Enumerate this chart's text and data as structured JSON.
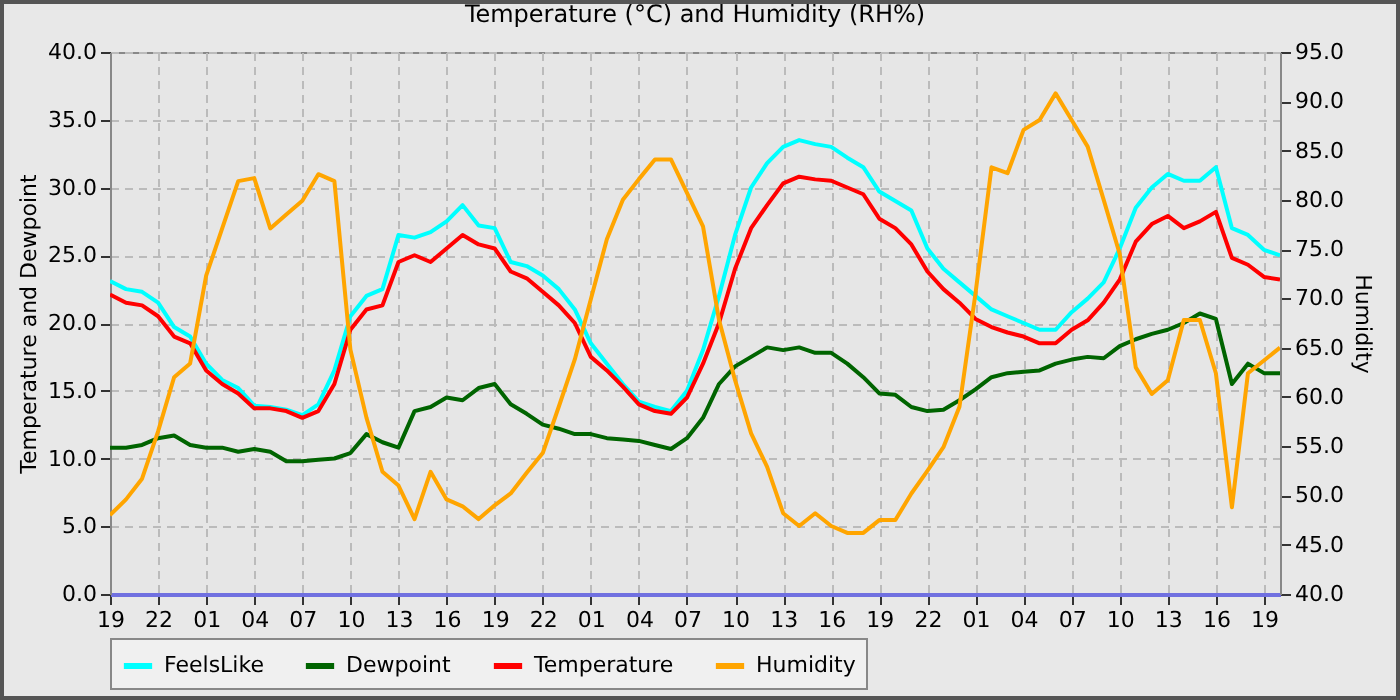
{
  "chart_data": {
    "type": "line",
    "title": "Temperature (°C) and Humidity (RH%)",
    "ylabel": "Temperature and Dewpoint",
    "y2label": "Humidity",
    "categories": [
      "19",
      null,
      null,
      "22",
      null,
      null,
      "01",
      null,
      null,
      "04",
      null,
      null,
      "07",
      null,
      null,
      "10",
      null,
      null,
      "13",
      null,
      null,
      "16",
      null,
      null,
      "19",
      null,
      null,
      "22",
      null,
      null,
      "01",
      null,
      null,
      "04",
      null,
      null,
      "07",
      null,
      null,
      "10",
      null,
      null,
      "13",
      null,
      null,
      "16",
      null,
      null,
      "19",
      null,
      null,
      "22",
      null,
      null,
      "01",
      null,
      null,
      "04",
      null,
      null,
      "07",
      null,
      null,
      "10",
      null,
      null,
      "13",
      null,
      null,
      "16",
      null,
      null,
      "19",
      null
    ],
    "ylim": [
      0,
      40
    ],
    "yticks": [
      {
        "value": 0,
        "label": "0.0"
      },
      {
        "value": 5,
        "label": "5.0"
      },
      {
        "value": 10,
        "label": "10.0"
      },
      {
        "value": 15,
        "label": "15.0"
      },
      {
        "value": 20,
        "label": "20.0"
      },
      {
        "value": 25,
        "label": "25.0"
      },
      {
        "value": 30,
        "label": "30.0"
      },
      {
        "value": 35,
        "label": "35.0"
      },
      {
        "value": 40,
        "label": "40.0"
      }
    ],
    "y2lim": [
      40,
      95
    ],
    "y2ticks": [
      {
        "value": 40,
        "label": "40.0"
      },
      {
        "value": 45,
        "label": "45.0"
      },
      {
        "value": 50,
        "label": "50.0"
      },
      {
        "value": 55,
        "label": "55.0"
      },
      {
        "value": 60,
        "label": "60.0"
      },
      {
        "value": 65,
        "label": "65.0"
      },
      {
        "value": 70,
        "label": "70.0"
      },
      {
        "value": 75,
        "label": "75.0"
      },
      {
        "value": 80,
        "label": "80.0"
      },
      {
        "value": 85,
        "label": "85.0"
      },
      {
        "value": 90,
        "label": "90.0"
      },
      {
        "value": 95,
        "label": "95.0"
      }
    ],
    "grid": true,
    "legend": "bottom",
    "series": [
      {
        "name": "FeelsLike",
        "color": "#00ffff",
        "values": [
          23.1,
          22.5,
          22.3,
          21.5,
          19.7,
          19,
          17,
          15.8,
          15.2,
          13.9,
          13.8,
          13.6,
          13.2,
          14,
          16.5,
          20.5,
          22,
          22.5,
          26.5,
          26.3,
          26.7,
          27.5,
          28.7,
          27.2,
          27.0,
          24.5,
          24.2,
          23.5,
          22.5,
          21,
          18.5,
          17,
          15.5,
          14.2,
          13.8,
          13.5,
          15,
          18,
          22,
          26.5,
          30,
          31.8,
          33,
          33.5,
          33.2,
          33.0,
          32.2,
          31.5,
          29.7,
          29,
          28.3,
          25.5,
          24,
          23,
          22,
          21,
          20.5,
          20.0,
          19.5,
          19.5,
          20.8,
          21.8,
          23,
          25.5,
          28.5,
          30,
          31,
          30.5,
          30.5,
          31.5,
          27,
          26.5,
          25.4,
          25.0
        ]
      },
      {
        "name": "Dewpoint",
        "color": "#006400",
        "values": [
          10.8,
          10.8,
          11.0,
          11.5,
          11.7,
          11.0,
          10.8,
          10.8,
          10.5,
          10.7,
          10.5,
          9.8,
          9.8,
          9.9,
          10.0,
          10.4,
          11.8,
          11.2,
          10.8,
          13.5,
          13.8,
          14.5,
          14.3,
          15.2,
          15.5,
          14,
          13.3,
          12.5,
          12.2,
          11.8,
          11.8,
          11.5,
          11.4,
          11.3,
          11.0,
          10.7,
          11.5,
          13,
          15.5,
          16.8,
          17.5,
          18.2,
          18.0,
          18.2,
          17.8,
          17.8,
          17.0,
          16.0,
          14.8,
          14.7,
          13.8,
          13.5,
          13.6,
          14.3,
          15.1,
          16.0,
          16.3,
          16.4,
          16.5,
          17.0,
          17.3,
          17.5,
          17.4,
          18.3,
          18.8,
          19.2,
          19.5,
          20.0,
          20.7,
          20.3,
          15.5,
          17.0,
          16.3,
          16.3
        ]
      },
      {
        "name": "Temperature",
        "color": "#ff0000",
        "values": [
          22.1,
          21.5,
          21.3,
          20.5,
          19,
          18.5,
          16.5,
          15.5,
          14.8,
          13.7,
          13.7,
          13.5,
          13.0,
          13.5,
          15.5,
          19.5,
          21,
          21.3,
          24.5,
          25,
          24.5,
          25.5,
          26.5,
          25.8,
          25.5,
          23.8,
          23.3,
          22.3,
          21.3,
          20,
          17.5,
          16.5,
          15.3,
          14.0,
          13.5,
          13.3,
          14.5,
          17,
          20,
          24.0,
          27,
          28.7,
          30.3,
          30.8,
          30.6,
          30.5,
          30.0,
          29.5,
          27.7,
          27.0,
          25.8,
          23.8,
          22.5,
          21.5,
          20.3,
          19.7,
          19.3,
          19.0,
          18.5,
          18.5,
          19.5,
          20.2,
          21.5,
          23.2,
          26,
          27.3,
          27.9,
          27,
          27.5,
          28.2,
          24.8,
          24.3,
          23.4,
          23.2
        ]
      },
      {
        "name": "Humidity",
        "color": "#ffa500",
        "axis": "y2",
        "values": [
          48,
          49.6,
          51.7,
          56.5,
          62,
          63.4,
          72.3,
          77.1,
          81.9,
          82.2,
          77.1,
          78.5,
          79.9,
          82.6,
          81.9,
          64.8,
          57.9,
          52.4,
          51,
          47.6,
          52.4,
          49.6,
          48.9,
          47.6,
          49,
          50.2,
          52.3,
          54.3,
          59,
          63.8,
          69.9,
          76,
          80,
          82.1,
          84.1,
          84.1,
          80.7,
          77.3,
          67.8,
          61.7,
          56.3,
          52.9,
          48.2,
          46.9,
          48.2,
          46.9,
          46.2,
          46.2,
          47.5,
          47.5,
          50.2,
          52.5,
          54.9,
          59,
          70.5,
          83.3,
          82.7,
          87.1,
          88.1,
          90.8,
          88.1,
          85.4,
          80,
          74.5,
          63,
          60.3,
          61.7,
          67.8,
          67.8,
          62.4,
          48.8,
          62.4,
          63.7,
          65
        ]
      }
    ]
  }
}
